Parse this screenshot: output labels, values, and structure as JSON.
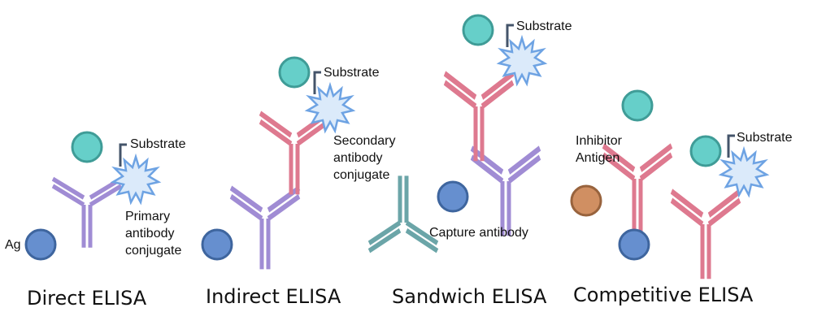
{
  "colors": {
    "purple": "#a08cd4",
    "pink": "#de798f",
    "teal": "#6ba5a8",
    "enzyme": "#66cfc9",
    "enzyme_stroke": "#3f9c97",
    "antigen": "#668fcf",
    "antigen_stroke": "#3e659e",
    "inhibitor": "#d08f62",
    "inhibitor_stroke": "#98633d",
    "substrate_fill": "#dbeafa",
    "substrate_stroke": "#6ea3e3"
  },
  "panels": {
    "direct": {
      "title": "Direct ELISA",
      "substrate": "Substrate",
      "ag": "Ag",
      "primary": [
        "Primary",
        "antibody",
        "conjugate"
      ]
    },
    "indirect": {
      "title": "Indirect ELISA",
      "substrate": "Substrate",
      "secondary": [
        "Secondary",
        "antibody",
        "conjugate"
      ]
    },
    "sandwich": {
      "title": "Sandwich ELISA",
      "substrate": "Substrate",
      "capture": "Capture antibody"
    },
    "competitive": {
      "title": "Competitive ELISA",
      "substrate": "Substrate",
      "inhibitor": [
        "Inhibitor",
        "Antigen"
      ]
    }
  }
}
